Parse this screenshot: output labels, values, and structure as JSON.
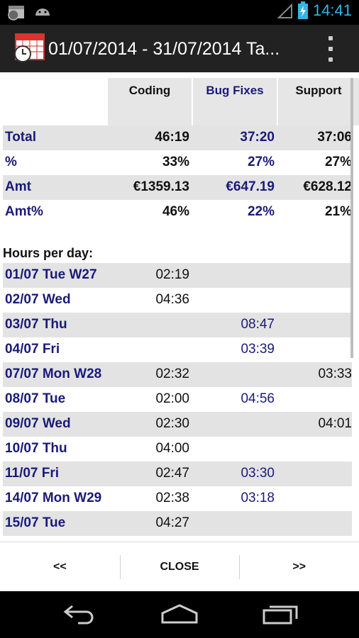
{
  "status_bar": {
    "time": "14:41"
  },
  "action_bar": {
    "title": "01/07/2014 - 31/07/2014 Ta..."
  },
  "columns": [
    "Coding",
    "Bug Fixes",
    "Support"
  ],
  "summary": [
    {
      "label": "Total",
      "values": [
        "46:19",
        "37:20",
        "37:06"
      ]
    },
    {
      "label": "%",
      "values": [
        "33%",
        "27%",
        "27%"
      ]
    },
    {
      "label": "Amt",
      "values": [
        "€1359.13",
        "€647.19",
        "€628.12"
      ]
    },
    {
      "label": "Amt%",
      "values": [
        "46%",
        "22%",
        "21%"
      ]
    }
  ],
  "hours_per_day_label": "Hours per day:",
  "days": [
    {
      "label": "01/07 Tue W27",
      "values": [
        "02:19",
        "",
        ""
      ]
    },
    {
      "label": "02/07 Wed",
      "values": [
        "04:36",
        "",
        ""
      ]
    },
    {
      "label": "03/07 Thu",
      "values": [
        "",
        "08:47",
        ""
      ]
    },
    {
      "label": "04/07 Fri",
      "values": [
        "",
        "03:39",
        ""
      ]
    },
    {
      "label": "07/07 Mon W28",
      "values": [
        "02:32",
        "",
        "03:33"
      ]
    },
    {
      "label": "08/07 Tue",
      "values": [
        "02:00",
        "04:56",
        ""
      ]
    },
    {
      "label": "09/07 Wed",
      "values": [
        "02:30",
        "",
        "04:01"
      ]
    },
    {
      "label": "10/07 Thu",
      "values": [
        "04:00",
        "",
        ""
      ]
    },
    {
      "label": "11/07 Fri",
      "values": [
        "02:47",
        "03:30",
        ""
      ]
    },
    {
      "label": "14/07 Mon W29",
      "values": [
        "02:38",
        "03:18",
        ""
      ]
    },
    {
      "label": "15/07 Tue",
      "values": [
        "04:27",
        "",
        ""
      ]
    }
  ],
  "buttons": {
    "prev": "<<",
    "close": "CLOSE",
    "next": ">>"
  },
  "colors": {
    "accent": "#33b5e5",
    "label_blue": "#1a1a7a",
    "shade": "#e3e3e3",
    "action_bar": "#222222"
  },
  "icons": [
    "calendar-clock-icon",
    "android-icon",
    "no-signal-icon",
    "battery-charging-icon",
    "overflow-menu-icon",
    "back-icon",
    "home-icon",
    "recent-apps-icon"
  ]
}
